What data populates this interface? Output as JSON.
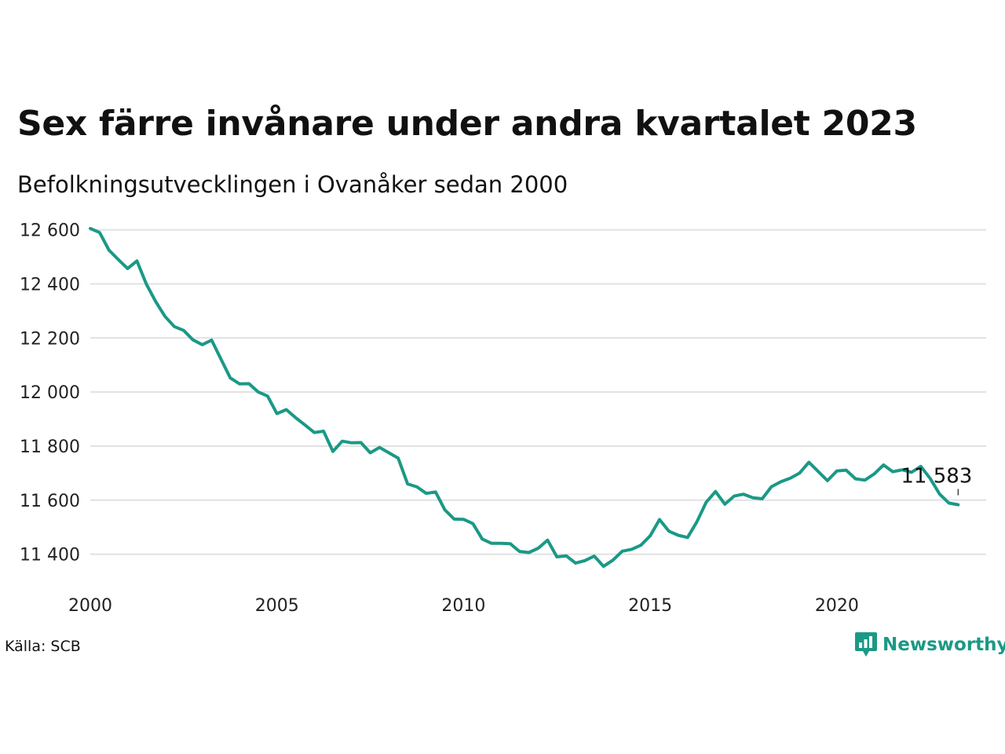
{
  "title": "Sex färre invånare under andra kvartalet 2023",
  "subtitle": "Befolkningsutvecklingen i Ovanåker sedan 2000",
  "source": "Källa: SCB",
  "brand": {
    "name": "Newsworthy",
    "logo_icon": "newsworthy-chart-bubble-icon",
    "color": "#1a9986"
  },
  "chart_data": {
    "type": "line",
    "title": "",
    "xlabel": "",
    "ylabel": "",
    "x_range": [
      2000,
      2024
    ],
    "ylim": [
      11300,
      12660
    ],
    "y_ticks": [
      11400,
      11600,
      11800,
      12000,
      12200,
      12400,
      12600
    ],
    "y_tick_labels": [
      "11 400",
      "11 600",
      "11 800",
      "12 000",
      "12 200",
      "12 400",
      "12 600"
    ],
    "x_ticks": [
      2000,
      2005,
      2010,
      2015,
      2020
    ],
    "x_tick_labels": [
      "2000",
      "2005",
      "2010",
      "2015",
      "2020"
    ],
    "grid": "horizontal",
    "line_color": "#1a9986",
    "series": [
      {
        "quarters": [
          "2000-Q1",
          "2000-Q2",
          "2000-Q3",
          "2000-Q4",
          "2001-Q1",
          "2001-Q2",
          "2001-Q3",
          "2001-Q4",
          "2002-Q1",
          "2002-Q2",
          "2002-Q3",
          "2002-Q4",
          "2003-Q1",
          "2003-Q2",
          "2003-Q3",
          "2003-Q4",
          "2004-Q1",
          "2004-Q2",
          "2004-Q3",
          "2004-Q4",
          "2005-Q1",
          "2005-Q2",
          "2005-Q3",
          "2005-Q4",
          "2006-Q1",
          "2006-Q2",
          "2006-Q3",
          "2006-Q4",
          "2007-Q1",
          "2007-Q2",
          "2007-Q3",
          "2007-Q4",
          "2008-Q1",
          "2008-Q2",
          "2008-Q3",
          "2008-Q4",
          "2009-Q1",
          "2009-Q2",
          "2009-Q3",
          "2009-Q4",
          "2010-Q1",
          "2010-Q2",
          "2010-Q3",
          "2010-Q4",
          "2011-Q1",
          "2011-Q2",
          "2011-Q3",
          "2011-Q4",
          "2012-Q1",
          "2012-Q2",
          "2012-Q3",
          "2012-Q4",
          "2013-Q1",
          "2013-Q2",
          "2013-Q3",
          "2013-Q4",
          "2014-Q1",
          "2014-Q2",
          "2014-Q3",
          "2014-Q4",
          "2015-Q1",
          "2015-Q2",
          "2015-Q3",
          "2015-Q4",
          "2016-Q1",
          "2016-Q2",
          "2016-Q3",
          "2016-Q4",
          "2017-Q1",
          "2017-Q2",
          "2017-Q3",
          "2017-Q4",
          "2018-Q1",
          "2018-Q2",
          "2018-Q3",
          "2018-Q4",
          "2019-Q1",
          "2019-Q2",
          "2019-Q3",
          "2019-Q4",
          "2020-Q1",
          "2020-Q2",
          "2020-Q3",
          "2020-Q4",
          "2021-Q1",
          "2021-Q2",
          "2021-Q3",
          "2021-Q4",
          "2022-Q1",
          "2022-Q2",
          "2022-Q3",
          "2022-Q4",
          "2023-Q1",
          "2023-Q2"
        ],
        "values": [
          12605,
          12590,
          12525,
          12490,
          12457,
          12485,
          12400,
          12335,
          12280,
          12242,
          12228,
          12193,
          12175,
          12192,
          12122,
          12052,
          12030,
          12031,
          12000,
          11985,
          11920,
          11935,
          11905,
          11878,
          11850,
          11855,
          11780,
          11818,
          11812,
          11813,
          11775,
          11795,
          11775,
          11755,
          11660,
          11649,
          11625,
          11630,
          11564,
          11530,
          11529,
          11513,
          11456,
          11440,
          11440,
          11439,
          11410,
          11406,
          11422,
          11452,
          11390,
          11394,
          11367,
          11376,
          11393,
          11355,
          11378,
          11411,
          11418,
          11433,
          11468,
          11528,
          11485,
          11470,
          11462,
          11520,
          11592,
          11632,
          11585,
          11615,
          11622,
          11609,
          11605,
          11650,
          11668,
          11681,
          11700,
          11740,
          11706,
          11672,
          11708,
          11711,
          11679,
          11674,
          11697,
          11730,
          11705,
          11712,
          11703,
          11725,
          11680,
          11623,
          11589,
          11583
        ]
      }
    ],
    "annotation": {
      "label": "11 583",
      "value": 11583,
      "quarter": "2023-Q2"
    }
  }
}
